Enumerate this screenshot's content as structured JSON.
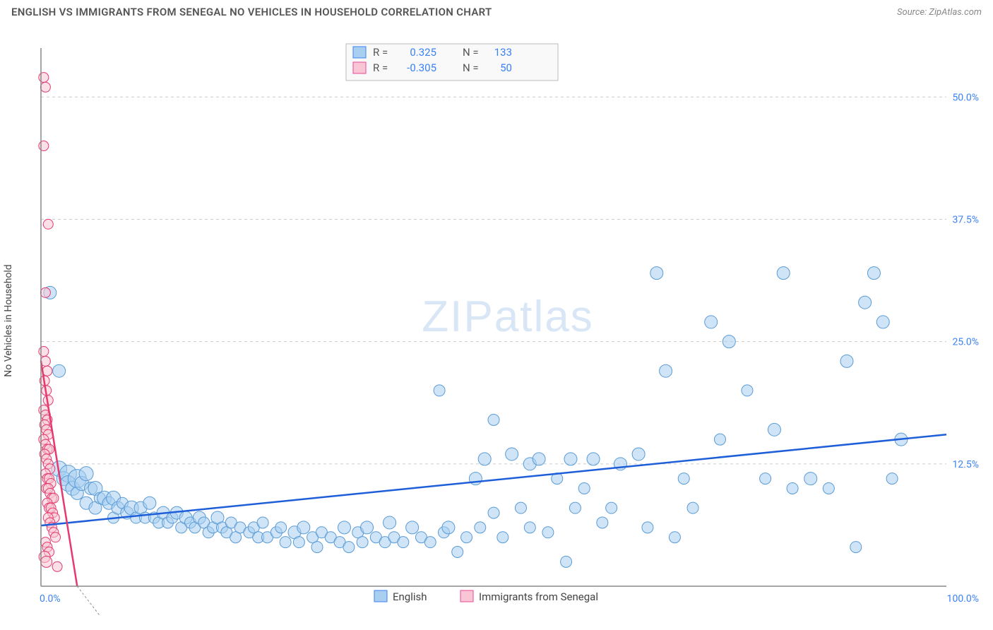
{
  "title": "ENGLISH VS IMMIGRANTS FROM SENEGAL NO VEHICLES IN HOUSEHOLD CORRELATION CHART",
  "source": "Source: ZipAtlas.com",
  "y_axis_label": "No Vehicles in Household",
  "watermark": "ZIPatlas",
  "chart": {
    "type": "scatter",
    "background_color": "#ffffff",
    "grid_color": "#cccccc",
    "xlim": [
      0,
      100
    ],
    "ylim": [
      0,
      55
    ],
    "x_ticks": [
      {
        "v": 0,
        "label": "0.0%"
      },
      {
        "v": 100,
        "label": "100.0%"
      }
    ],
    "y_ticks": [
      {
        "v": 12.5,
        "label": "12.5%"
      },
      {
        "v": 25.0,
        "label": "25.0%"
      },
      {
        "v": 37.5,
        "label": "37.5%"
      },
      {
        "v": 50.0,
        "label": "50.0%"
      }
    ],
    "series": [
      {
        "name": "English",
        "color_fill": "#a8cef0",
        "color_stroke": "#5a9bd5",
        "R": "0.325",
        "N": "133",
        "trend": {
          "x1": 0,
          "y1": 6.2,
          "x2": 100,
          "y2": 15.5,
          "color": "#1e5fd9"
        },
        "points": [
          [
            1,
            30,
            12
          ],
          [
            2,
            22,
            12
          ],
          [
            2,
            12,
            16
          ],
          [
            2.5,
            11,
            14
          ],
          [
            3,
            11.5,
            18
          ],
          [
            3,
            10.5,
            16
          ],
          [
            3.5,
            10,
            14
          ],
          [
            4,
            11,
            20
          ],
          [
            4,
            9.5,
            12
          ],
          [
            4.5,
            10.5,
            14
          ],
          [
            5,
            8.5,
            12
          ],
          [
            5,
            11.5,
            14
          ],
          [
            5.5,
            10,
            12
          ],
          [
            6,
            10,
            14
          ],
          [
            6,
            8,
            12
          ],
          [
            6.5,
            9,
            10
          ],
          [
            7,
            9,
            14
          ],
          [
            7.5,
            8.5,
            12
          ],
          [
            8,
            9,
            14
          ],
          [
            8,
            7,
            10
          ],
          [
            8.5,
            8,
            12
          ],
          [
            9,
            8.5,
            10
          ],
          [
            9.5,
            7.5,
            12
          ],
          [
            10,
            8,
            14
          ],
          [
            10.5,
            7,
            10
          ],
          [
            11,
            8,
            12
          ],
          [
            11.5,
            7,
            10
          ],
          [
            12,
            8.5,
            12
          ],
          [
            12.5,
            7,
            10
          ],
          [
            13,
            6.5,
            10
          ],
          [
            13.5,
            7.5,
            12
          ],
          [
            14,
            6.5,
            10
          ],
          [
            14.5,
            7,
            10
          ],
          [
            15,
            7.5,
            12
          ],
          [
            15.5,
            6,
            10
          ],
          [
            16,
            7,
            12
          ],
          [
            16.5,
            6.5,
            10
          ],
          [
            17,
            6,
            10
          ],
          [
            17.5,
            7,
            12
          ],
          [
            18,
            6.5,
            10
          ],
          [
            18.5,
            5.5,
            10
          ],
          [
            19,
            6,
            10
          ],
          [
            19.5,
            7,
            12
          ],
          [
            20,
            6,
            10
          ],
          [
            20.5,
            5.5,
            10
          ],
          [
            21,
            6.5,
            10
          ],
          [
            21.5,
            5,
            10
          ],
          [
            22,
            6,
            10
          ],
          [
            23,
            5.5,
            10
          ],
          [
            23.5,
            6,
            10
          ],
          [
            24,
            5,
            10
          ],
          [
            24.5,
            6.5,
            10
          ],
          [
            25,
            5,
            10
          ],
          [
            26,
            5.5,
            10
          ],
          [
            26.5,
            6,
            10
          ],
          [
            27,
            4.5,
            10
          ],
          [
            28,
            5.5,
            12
          ],
          [
            28.5,
            4.5,
            10
          ],
          [
            29,
            6,
            12
          ],
          [
            30,
            5,
            10
          ],
          [
            30.5,
            4,
            10
          ],
          [
            31,
            5.5,
            10
          ],
          [
            32,
            5,
            10
          ],
          [
            33,
            4.5,
            10
          ],
          [
            33.5,
            6,
            12
          ],
          [
            34,
            4,
            10
          ],
          [
            35,
            5.5,
            10
          ],
          [
            35.5,
            4.5,
            10
          ],
          [
            36,
            6,
            12
          ],
          [
            37,
            5,
            10
          ],
          [
            38,
            4.5,
            10
          ],
          [
            38.5,
            6.5,
            12
          ],
          [
            39,
            5,
            10
          ],
          [
            40,
            4.5,
            10
          ],
          [
            41,
            6,
            12
          ],
          [
            42,
            5,
            10
          ],
          [
            43,
            4.5,
            10
          ],
          [
            44,
            20,
            10
          ],
          [
            44.5,
            5.5,
            10
          ],
          [
            45,
            6,
            12
          ],
          [
            46,
            3.5,
            10
          ],
          [
            47,
            5,
            10
          ],
          [
            48,
            11,
            12
          ],
          [
            48.5,
            6,
            10
          ],
          [
            49,
            13,
            12
          ],
          [
            50,
            7.5,
            10
          ],
          [
            50,
            17,
            10
          ],
          [
            51,
            5,
            10
          ],
          [
            52,
            13.5,
            12
          ],
          [
            53,
            8,
            10
          ],
          [
            54,
            12.5,
            12
          ],
          [
            54,
            6,
            10
          ],
          [
            55,
            13,
            12
          ],
          [
            56,
            5.5,
            10
          ],
          [
            57,
            11,
            10
          ],
          [
            58,
            2.5,
            10
          ],
          [
            58.5,
            13,
            12
          ],
          [
            59,
            8,
            10
          ],
          [
            60,
            10,
            10
          ],
          [
            61,
            13,
            12
          ],
          [
            62,
            6.5,
            10
          ],
          [
            63,
            8,
            10
          ],
          [
            64,
            12.5,
            12
          ],
          [
            66,
            13.5,
            12
          ],
          [
            67,
            6,
            10
          ],
          [
            68,
            32,
            12
          ],
          [
            69,
            22,
            12
          ],
          [
            70,
            5,
            10
          ],
          [
            71,
            11,
            10
          ],
          [
            72,
            8,
            10
          ],
          [
            74,
            27,
            12
          ],
          [
            75,
            15,
            10
          ],
          [
            76,
            25,
            12
          ],
          [
            78,
            20,
            10
          ],
          [
            80,
            11,
            10
          ],
          [
            81,
            16,
            12
          ],
          [
            82,
            32,
            12
          ],
          [
            83,
            10,
            10
          ],
          [
            85,
            11,
            12
          ],
          [
            87,
            10,
            10
          ],
          [
            89,
            23,
            12
          ],
          [
            90,
            4,
            10
          ],
          [
            91,
            29,
            12
          ],
          [
            92,
            32,
            12
          ],
          [
            93,
            27,
            12
          ],
          [
            94,
            11,
            10
          ],
          [
            95,
            15,
            12
          ]
        ]
      },
      {
        "name": "Immigrants from Senegal",
        "color_fill": "#f8c6d4",
        "color_stroke": "#e5396f",
        "R": "-0.305",
        "N": "50",
        "trend": {
          "x1": 0,
          "y1": 23,
          "x2": 4,
          "y2": 0,
          "color": "#e5396f"
        },
        "points": [
          [
            0.3,
            52,
            8
          ],
          [
            0.5,
            51,
            8
          ],
          [
            0.3,
            45,
            8
          ],
          [
            0.8,
            37,
            8
          ],
          [
            0.5,
            30,
            8
          ],
          [
            0.3,
            24,
            8
          ],
          [
            0.5,
            23,
            8
          ],
          [
            0.7,
            22,
            8
          ],
          [
            0.4,
            21,
            8
          ],
          [
            0.6,
            20,
            8
          ],
          [
            0.8,
            19,
            8
          ],
          [
            0.3,
            18,
            8
          ],
          [
            0.5,
            17.5,
            8
          ],
          [
            0.7,
            17,
            8
          ],
          [
            0.4,
            16.5,
            8
          ],
          [
            0.6,
            16,
            8
          ],
          [
            0.8,
            15.5,
            8
          ],
          [
            0.3,
            15,
            8
          ],
          [
            0.5,
            14.5,
            8
          ],
          [
            0.7,
            14,
            8
          ],
          [
            0.9,
            14,
            8
          ],
          [
            0.4,
            13.5,
            8
          ],
          [
            0.6,
            13,
            8
          ],
          [
            0.8,
            12.5,
            8
          ],
          [
            1.0,
            12,
            8
          ],
          [
            0.5,
            11.5,
            8
          ],
          [
            0.7,
            11,
            8
          ],
          [
            0.9,
            11,
            8
          ],
          [
            1.1,
            10.5,
            8
          ],
          [
            0.6,
            10,
            8
          ],
          [
            0.8,
            10,
            8
          ],
          [
            1.0,
            9.5,
            8
          ],
          [
            1.2,
            9,
            8
          ],
          [
            1.4,
            9,
            8
          ],
          [
            0.7,
            8.5,
            8
          ],
          [
            0.9,
            8,
            8
          ],
          [
            1.1,
            8,
            8
          ],
          [
            1.3,
            7.5,
            8
          ],
          [
            1.5,
            7,
            8
          ],
          [
            0.8,
            7,
            8
          ],
          [
            1.0,
            6.5,
            8
          ],
          [
            1.2,
            6,
            8
          ],
          [
            1.4,
            5.5,
            8
          ],
          [
            1.6,
            5,
            8
          ],
          [
            0.5,
            4.5,
            8
          ],
          [
            0.7,
            4,
            8
          ],
          [
            0.9,
            3.5,
            8
          ],
          [
            0.4,
            3,
            10
          ],
          [
            0.6,
            2.5,
            10
          ],
          [
            1.8,
            2,
            8
          ]
        ]
      }
    ]
  },
  "legend_top": {
    "rows": [
      {
        "swatch": "blue",
        "R_label": "R =",
        "R": "0.325",
        "N_label": "N =",
        "N": "133"
      },
      {
        "swatch": "pink",
        "R_label": "R =",
        "R": "-0.305",
        "N_label": "N =",
        "N": "50"
      }
    ]
  },
  "legend_bottom": {
    "items": [
      {
        "swatch": "blue",
        "label": "English"
      },
      {
        "swatch": "pink",
        "label": "Immigrants from Senegal"
      }
    ]
  }
}
